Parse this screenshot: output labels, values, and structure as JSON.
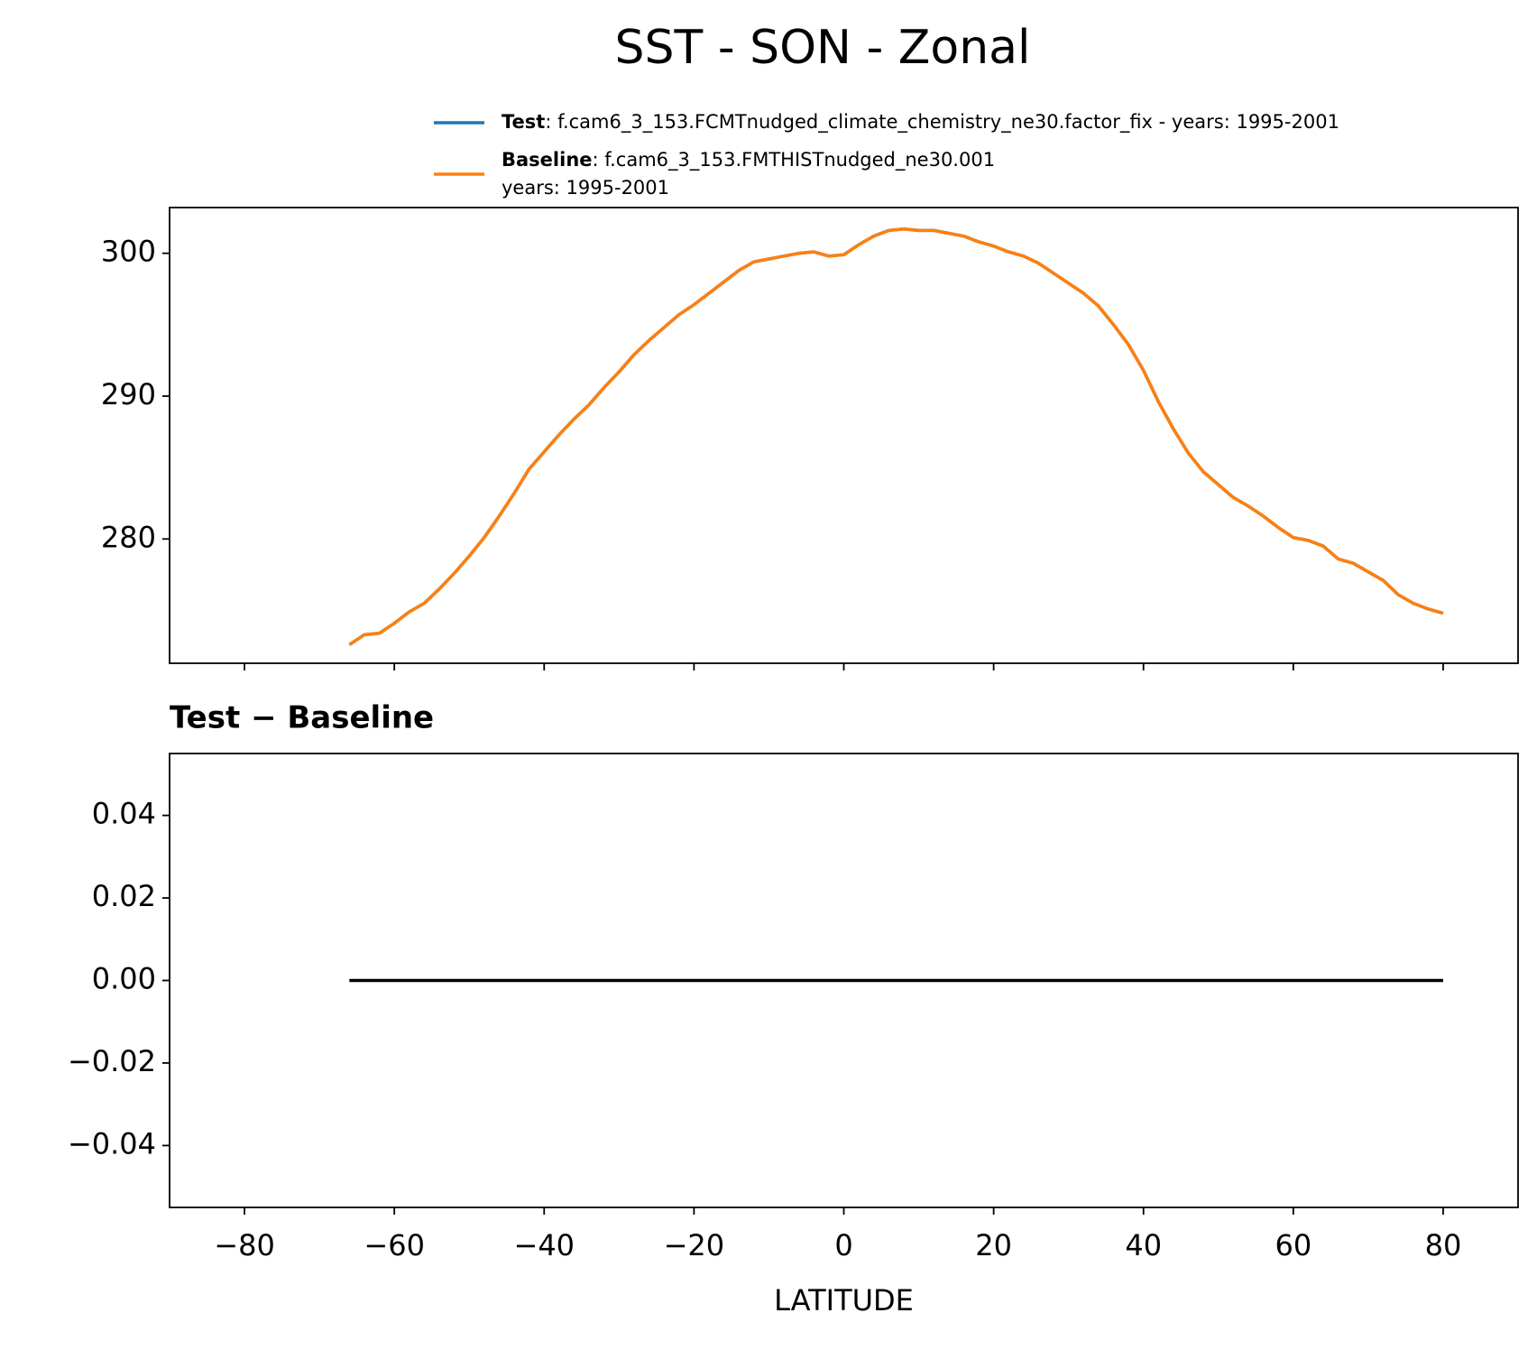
{
  "title": "SST - SON - Zonal",
  "chart_data": [
    {
      "type": "line",
      "x": [
        -66,
        -64,
        -62,
        -60,
        -58,
        -56,
        -54,
        -52,
        -50,
        -48,
        -46,
        -44,
        -42,
        -40,
        -38,
        -36,
        -34,
        -32,
        -30,
        -28,
        -26,
        -24,
        -22,
        -20,
        -18,
        -16,
        -14,
        -12,
        -10,
        -8,
        -6,
        -4,
        -2,
        0,
        2,
        4,
        6,
        8,
        10,
        12,
        14,
        16,
        18,
        20,
        22,
        24,
        26,
        28,
        30,
        32,
        34,
        36,
        38,
        40,
        42,
        44,
        46,
        48,
        50,
        52,
        54,
        56,
        58,
        60,
        62,
        64,
        66,
        68,
        70,
        72,
        74,
        76,
        78,
        80
      ],
      "series": [
        {
          "name": "Test",
          "label": [
            ": f.cam6_3_153.FCMTnudged_climate_chemistry_ne30.factor_fix - years: 1995-2001"
          ],
          "color": "#1f77b4",
          "values": [
            272.6,
            273.3,
            273.4,
            274.1,
            274.9,
            275.5,
            276.5,
            277.6,
            278.8,
            280.1,
            281.6,
            283.2,
            284.9,
            286.1,
            287.3,
            288.4,
            289.4,
            290.6,
            291.7,
            292.9,
            293.9,
            294.8,
            295.7,
            296.4,
            297.2,
            298.0,
            298.8,
            299.4,
            299.6,
            299.8,
            300.0,
            300.1,
            299.8,
            299.9,
            300.6,
            301.2,
            301.6,
            301.7,
            301.6,
            301.6,
            301.4,
            301.2,
            300.8,
            300.5,
            300.1,
            299.8,
            299.3,
            298.6,
            297.9,
            297.2,
            296.3,
            295.0,
            293.6,
            291.8,
            289.6,
            287.7,
            286.0,
            284.7,
            283.8,
            282.9,
            282.3,
            281.6,
            280.8,
            280.1,
            279.9,
            279.5,
            278.6,
            278.3,
            277.7,
            277.1,
            276.1,
            275.5,
            275.1,
            274.8
          ]
        },
        {
          "name": "Baseline",
          "label": [
            ": f.cam6_3_153.FMTHISTnudged_ne30.001",
            "years: 1995-2001"
          ],
          "color": "#ff7f0e",
          "values": [
            272.6,
            273.3,
            273.4,
            274.1,
            274.9,
            275.5,
            276.5,
            277.6,
            278.8,
            280.1,
            281.6,
            283.2,
            284.9,
            286.1,
            287.3,
            288.4,
            289.4,
            290.6,
            291.7,
            292.9,
            293.9,
            294.8,
            295.7,
            296.4,
            297.2,
            298.0,
            298.8,
            299.4,
            299.6,
            299.8,
            300.0,
            300.1,
            299.8,
            299.9,
            300.6,
            301.2,
            301.6,
            301.7,
            301.6,
            301.6,
            301.4,
            301.2,
            300.8,
            300.5,
            300.1,
            299.8,
            299.3,
            298.6,
            297.9,
            297.2,
            296.3,
            295.0,
            293.6,
            291.8,
            289.6,
            287.7,
            286.0,
            284.7,
            283.8,
            282.9,
            282.3,
            281.6,
            280.8,
            280.1,
            279.9,
            279.5,
            278.6,
            278.3,
            277.7,
            277.1,
            276.1,
            275.5,
            275.1,
            274.8
          ]
        }
      ],
      "xlim": [
        -90,
        90
      ],
      "xticks": [
        {
          "value": -80,
          "label": "−80"
        },
        {
          "value": -60,
          "label": "−60"
        },
        {
          "value": -40,
          "label": "−40"
        },
        {
          "value": -20,
          "label": "−20"
        },
        0,
        20,
        40,
        60,
        80
      ],
      "xticklabels": false,
      "ylim": [
        271.3,
        303.2
      ],
      "yticks": [
        280,
        290,
        300
      ]
    },
    {
      "type": "line",
      "title": "Test − Baseline",
      "xlabel": "LATITUDE",
      "x": [
        -66,
        -64,
        -62,
        -60,
        -58,
        -56,
        -54,
        -52,
        -50,
        -48,
        -46,
        -44,
        -42,
        -40,
        -38,
        -36,
        -34,
        -32,
        -30,
        -28,
        -26,
        -24,
        -22,
        -20,
        -18,
        -16,
        -14,
        -12,
        -10,
        -8,
        -6,
        -4,
        -2,
        0,
        2,
        4,
        6,
        8,
        10,
        12,
        14,
        16,
        18,
        20,
        22,
        24,
        26,
        28,
        30,
        32,
        34,
        36,
        38,
        40,
        42,
        44,
        46,
        48,
        50,
        52,
        54,
        56,
        58,
        60,
        62,
        64,
        66,
        68,
        70,
        72,
        74,
        76,
        78,
        80
      ],
      "series": [
        {
          "color": "#000000",
          "values": [
            0,
            0,
            0,
            0,
            0,
            0,
            0,
            0,
            0,
            0,
            0,
            0,
            0,
            0,
            0,
            0,
            0,
            0,
            0,
            0,
            0,
            0,
            0,
            0,
            0,
            0,
            0,
            0,
            0,
            0,
            0,
            0,
            0,
            0,
            0,
            0,
            0,
            0,
            0,
            0,
            0,
            0,
            0,
            0,
            0,
            0,
            0,
            0,
            0,
            0,
            0,
            0,
            0,
            0,
            0,
            0,
            0,
            0,
            0,
            0,
            0,
            0,
            0,
            0,
            0,
            0,
            0,
            0,
            0,
            0,
            0,
            0,
            0,
            0
          ]
        }
      ],
      "xlim": [
        -90,
        90
      ],
      "xticks": [
        {
          "value": -80,
          "label": "−80"
        },
        {
          "value": -60,
          "label": "−60"
        },
        {
          "value": -40,
          "label": "−40"
        },
        {
          "value": -20,
          "label": "−20"
        },
        0,
        20,
        40,
        60,
        80
      ],
      "xticklabels": true,
      "ylim": [
        -0.055,
        0.055
      ],
      "yticks": [
        {
          "value": -0.04,
          "label": "−0.04"
        },
        {
          "value": -0.02,
          "label": "−0.02"
        },
        {
          "value": 0,
          "label": "0.00"
        },
        0.02,
        0.04
      ]
    }
  ]
}
